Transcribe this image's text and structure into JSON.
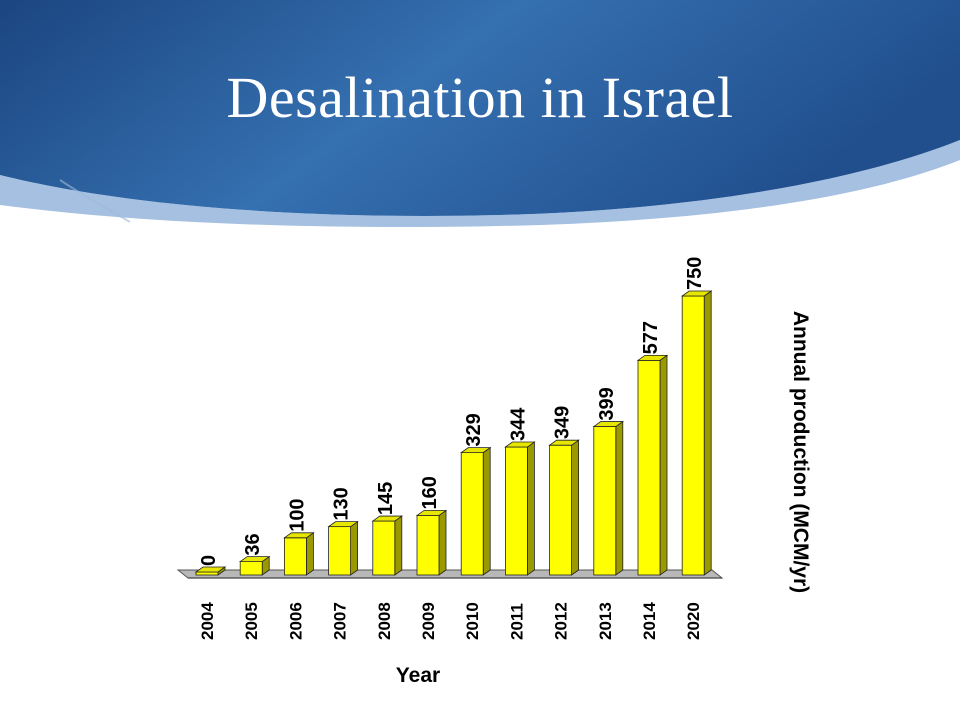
{
  "slide": {
    "title": "Desalination in Israel"
  },
  "colors": {
    "header_blue": "#2f63a3",
    "header_dark": "#1a3f78",
    "bar_fill": "#ffff00",
    "bar_edge": "#000000"
  },
  "chart_data": {
    "type": "bar",
    "categories": [
      "2004",
      "2005",
      "2006",
      "2007",
      "2008",
      "2009",
      "2010",
      "2011",
      "2012",
      "2013",
      "2014",
      "2020"
    ],
    "values": [
      0,
      36,
      100,
      130,
      145,
      160,
      329,
      344,
      349,
      399,
      577,
      750
    ],
    "title": "",
    "xlabel": "Year",
    "ylabel": "Annual production (MCM/yr)",
    "ylim": [
      0,
      750
    ],
    "grid": false,
    "style": "3d"
  }
}
